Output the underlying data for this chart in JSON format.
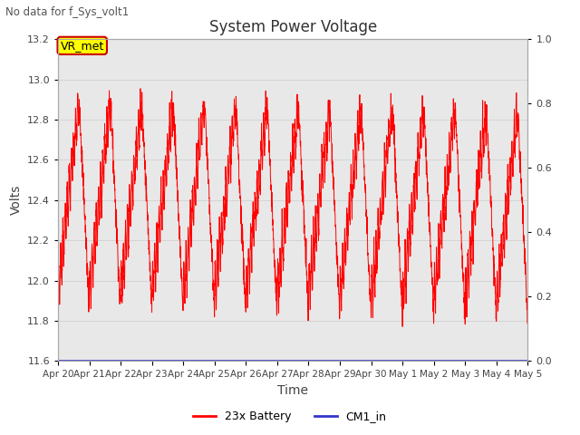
{
  "title": "System Power Voltage",
  "subtitle": "No data for f_Sys_volt1",
  "xlabel": "Time",
  "ylabel": "Volts",
  "ylim_left": [
    11.6,
    13.2
  ],
  "ylim_right": [
    0.0,
    1.0
  ],
  "yticks_left": [
    11.6,
    11.8,
    12.0,
    12.2,
    12.4,
    12.6,
    12.8,
    13.0,
    13.2
  ],
  "yticks_right": [
    0.0,
    0.2,
    0.4,
    0.6,
    0.8,
    1.0
  ],
  "xtick_labels": [
    "Apr 20",
    "Apr 21",
    "Apr 22",
    "Apr 23",
    "Apr 24",
    "Apr 25",
    "Apr 26",
    "Apr 27",
    "Apr 28",
    "Apr 29",
    "Apr 30",
    "May 1",
    "May 2",
    "May 3",
    "May 4",
    "May 5"
  ],
  "line_color": "#ff0000",
  "cm1_color": "#3333cc",
  "bg_color": "#e8e8e8",
  "plot_bg": "#ffffff",
  "legend_entries": [
    "23x Battery",
    "CM1_in"
  ],
  "vr_met_label": "VR_met",
  "vr_met_color": "#ffff00",
  "vr_met_border": "#cc0000"
}
